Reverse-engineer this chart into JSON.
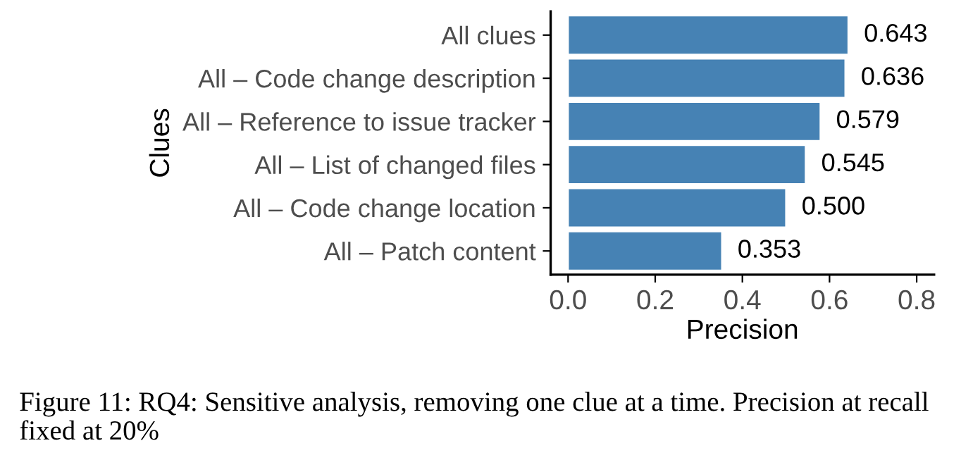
{
  "chart_data": {
    "type": "bar",
    "orientation": "horizontal",
    "xlabel": "Precision",
    "ylabel": "Clues",
    "categories": [
      "All clues",
      "All – Code change description",
      "All – Reference to issue tracker",
      "All – List of changed files",
      "All – Code change location",
      "All – Patch content"
    ],
    "values": [
      0.643,
      0.636,
      0.579,
      0.545,
      0.5,
      0.353
    ],
    "color": "#4682b4",
    "value_labels": [
      "0.643",
      "0.636",
      "0.579",
      "0.545",
      "0.500",
      "0.353"
    ],
    "xlim": [
      -0.04,
      0.84
    ],
    "xticks": [
      {
        "value": 0,
        "label": "0.0"
      },
      0.2,
      0.4,
      0.6,
      0.8
    ],
    "grid": false,
    "legend": false,
    "annotations": [
      "Figure 11: RQ4: Sensitive analysis, removing one clue at a time. Precision at recall fixed at 20%"
    ]
  }
}
